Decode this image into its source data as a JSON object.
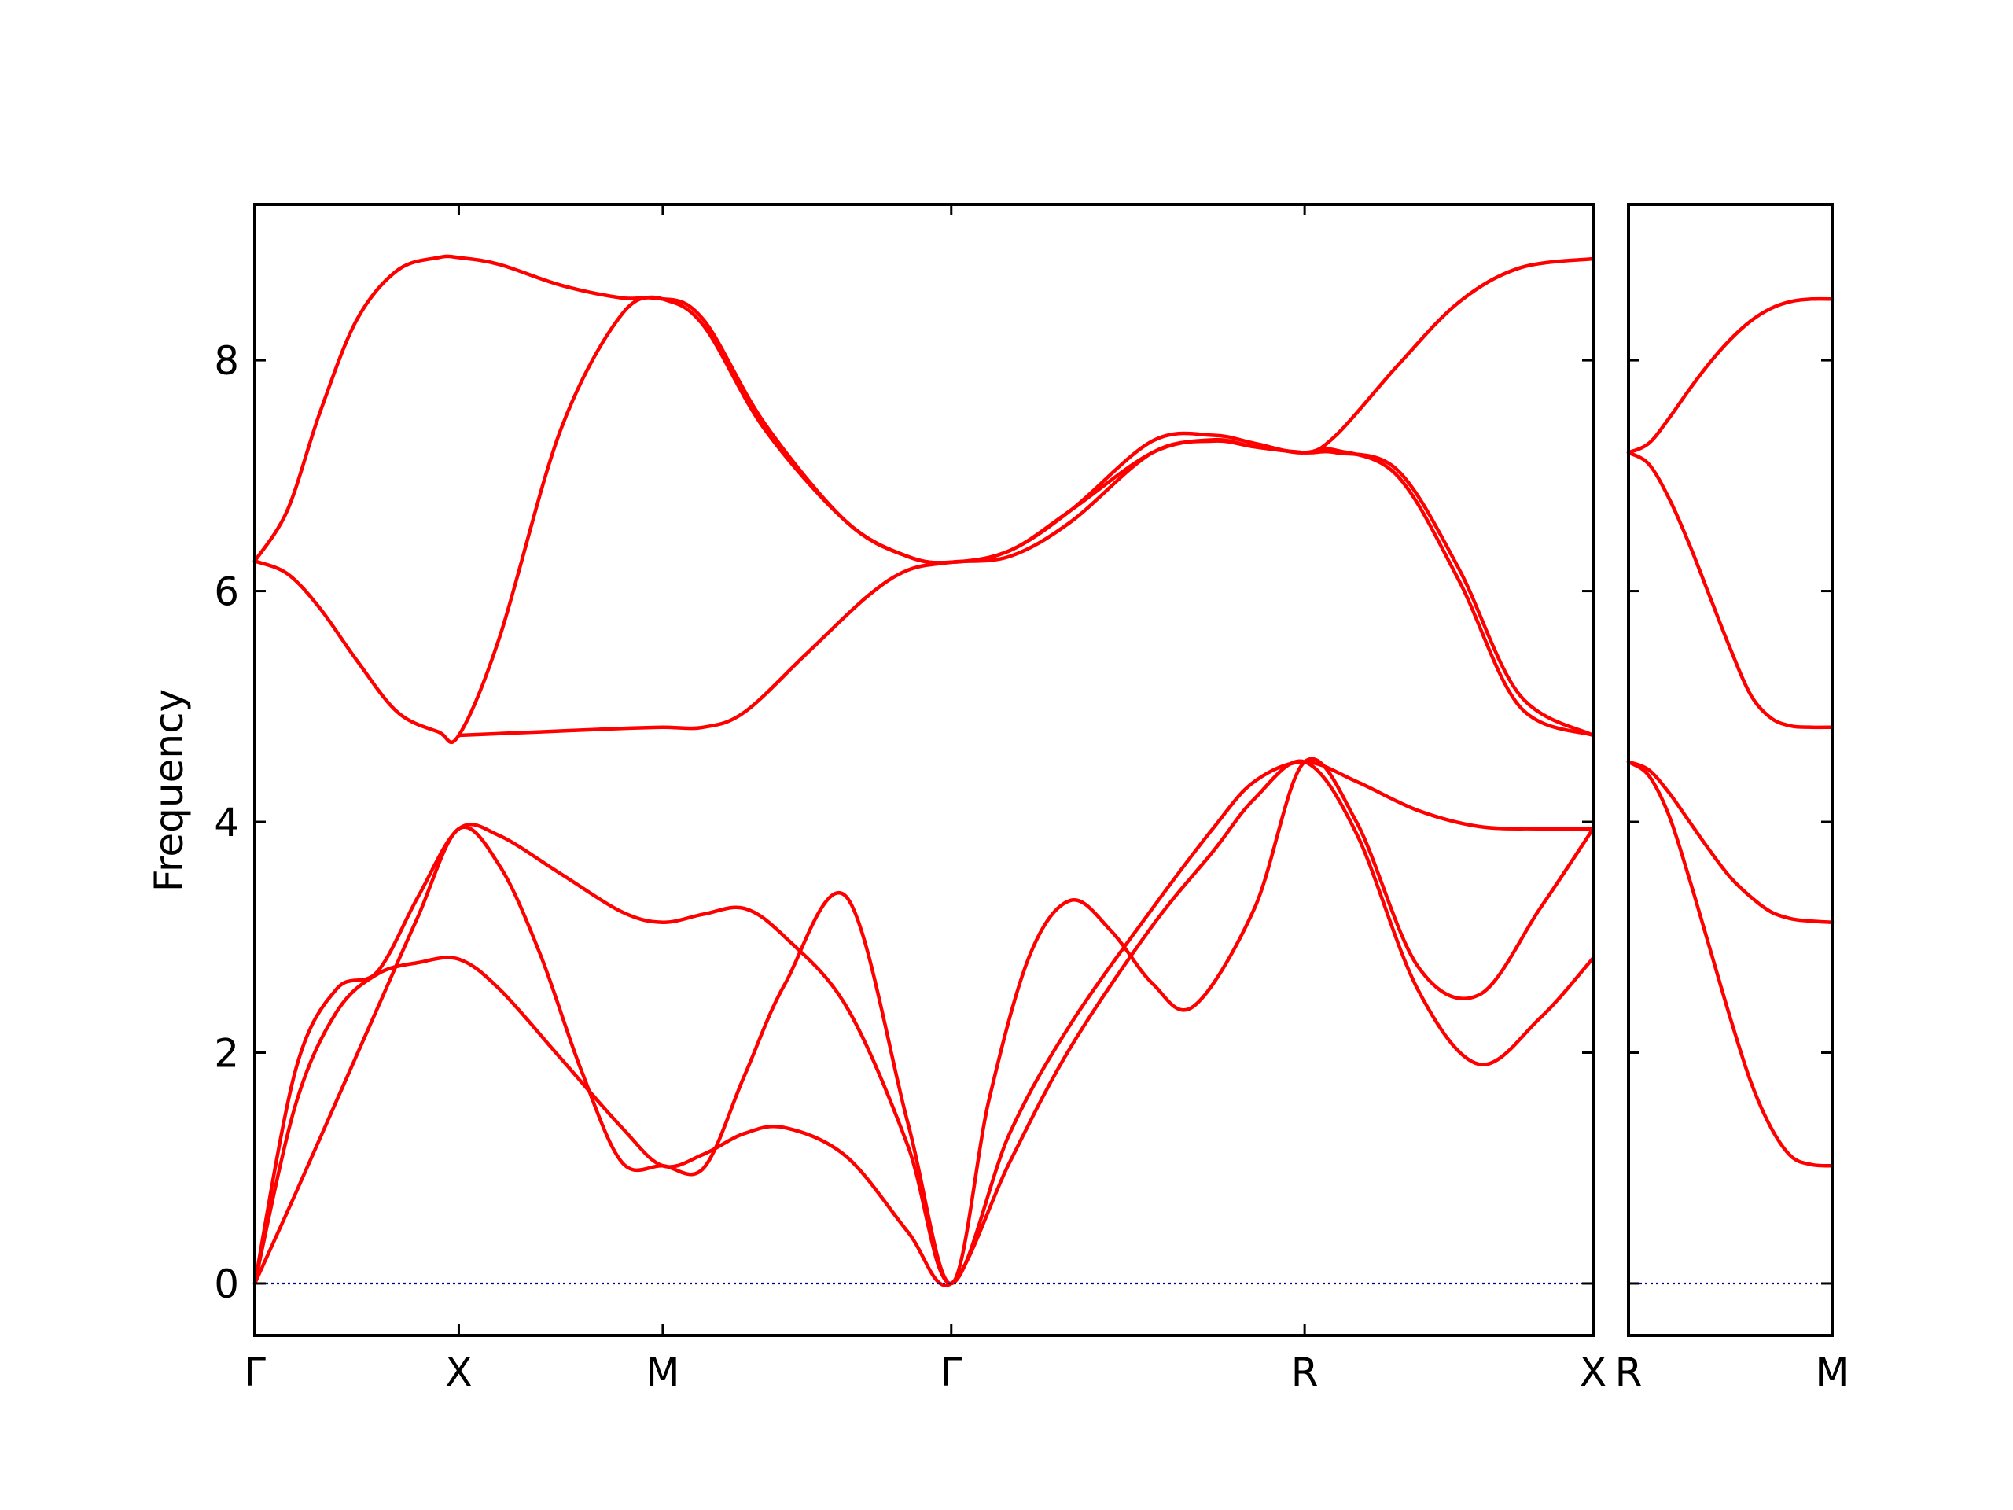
{
  "chart_data": {
    "type": "line",
    "ylabel": "Frequency",
    "ylim": [
      -0.45,
      9.35
    ],
    "yticks": [
      0,
      2,
      4,
      6,
      8
    ],
    "line_color": "#ff0000",
    "zero_line_color": "#00008b",
    "panels": [
      {
        "name": "left-panel",
        "xticks": [
          {
            "pos": 0.0,
            "label": "Γ"
          },
          {
            "pos": 0.5,
            "label": "X"
          },
          {
            "pos": 1.0,
            "label": "M"
          },
          {
            "pos": 1.707,
            "label": "Γ"
          },
          {
            "pos": 2.573,
            "label": "R"
          },
          {
            "pos": 3.28,
            "label": "X"
          }
        ],
        "xlim": [
          0,
          3.28
        ],
        "series": [
          {
            "x": [
              0,
              0.08,
              0.16,
              0.25,
              0.35,
              0.45,
              0.5,
              0.6,
              0.75,
              0.9,
              1.0,
              1.1,
              1.25,
              1.45,
              1.6,
              1.707,
              1.85,
              2.0,
              2.2,
              2.35,
              2.45,
              2.573,
              2.65,
              2.8,
              2.95,
              3.1,
              3.28
            ],
            "y": [
              6.26,
              6.7,
              7.55,
              8.35,
              8.78,
              8.89,
              8.89,
              8.83,
              8.65,
              8.54,
              8.53,
              8.3,
              7.4,
              6.6,
              6.3,
              6.25,
              6.35,
              6.7,
              7.3,
              7.35,
              7.28,
              7.2,
              7.35,
              7.95,
              8.5,
              8.8,
              8.88
            ]
          },
          {
            "x": [
              0,
              0.08,
              0.16,
              0.25,
              0.35,
              0.45,
              0.5,
              0.6,
              0.75,
              0.9,
              1.0,
              1.1,
              1.25,
              1.45,
              1.6,
              1.707,
              1.85,
              2.0,
              2.2,
              2.35,
              2.45,
              2.573,
              2.65,
              2.8,
              2.95,
              3.1,
              3.28
            ],
            "y": [
              6.26,
              6.15,
              5.85,
              5.4,
              4.95,
              4.78,
              4.75,
              5.6,
              7.4,
              8.4,
              8.53,
              8.35,
              7.45,
              6.6,
              6.3,
              6.25,
              6.35,
              6.7,
              7.2,
              7.31,
              7.25,
              7.2,
              7.2,
              7.05,
              6.2,
              5.1,
              4.75
            ]
          },
          {
            "x": [
              0.5,
              0.7,
              0.9,
              1.0,
              1.1,
              1.2,
              1.35,
              1.5,
              1.6,
              1.707,
              1.85,
              2.0,
              2.2,
              2.35,
              2.45,
              2.573,
              2.65,
              2.8,
              2.95,
              3.1,
              3.28
            ],
            "y": [
              4.75,
              4.78,
              4.81,
              4.82,
              4.82,
              4.95,
              5.45,
              5.95,
              6.18,
              6.25,
              6.3,
              6.6,
              7.2,
              7.3,
              7.25,
              7.2,
              7.22,
              7.0,
              6.1,
              5.0,
              4.75
            ]
          },
          {
            "x": [
              0,
              0.1,
              0.2,
              0.3,
              0.4,
              0.5,
              0.6,
              0.75,
              0.9,
              1.0,
              1.1,
              1.2,
              1.3,
              1.45,
              1.6,
              1.707,
              1.85,
              2.0,
              2.2,
              2.35,
              2.45,
              2.573,
              2.7,
              2.85,
              3.0,
              3.15,
              3.28
            ],
            "y": [
              0.0,
              1.55,
              2.35,
              2.68,
              2.78,
              2.81,
              2.55,
              1.95,
              1.35,
              1.02,
              1.12,
              1.3,
              1.35,
              1.1,
              0.45,
              0.0,
              1.05,
              2.05,
              3.1,
              3.75,
              4.2,
              4.52,
              3.9,
              2.55,
              1.9,
              2.3,
              2.82
            ]
          },
          {
            "x": [
              0,
              0.1,
              0.2,
              0.3,
              0.4,
              0.5,
              0.6,
              0.7,
              0.8,
              0.9,
              1.0,
              1.1,
              1.2,
              1.3,
              1.45,
              1.6,
              1.707,
              1.8,
              1.9,
              2.0,
              2.1,
              2.2,
              2.3,
              2.45,
              2.573,
              2.7,
              2.85,
              3.0,
              3.15,
              3.28
            ],
            "y": [
              0.0,
              0.78,
              1.58,
              2.38,
              3.18,
              3.94,
              3.62,
              2.85,
              1.85,
              1.05,
              1.02,
              1.0,
              1.8,
              2.6,
              3.35,
              1.4,
              0.0,
              1.6,
              2.85,
              3.32,
              3.05,
              2.6,
              2.4,
              3.25,
              4.52,
              4.0,
              2.75,
              2.5,
              3.25,
              3.94
            ]
          },
          {
            "x": [
              0,
              0.1,
              0.2,
              0.3,
              0.4,
              0.5,
              0.6,
              0.75,
              0.9,
              1.0,
              1.1,
              1.2,
              1.3,
              1.45,
              1.6,
              1.707,
              1.85,
              2.0,
              2.2,
              2.35,
              2.45,
              2.573,
              2.7,
              2.85,
              3.0,
              3.15,
              3.28
            ],
            "y": [
              0.0,
              1.85,
              2.55,
              2.7,
              3.35,
              3.94,
              3.88,
              3.55,
              3.22,
              3.13,
              3.2,
              3.25,
              3.0,
              2.4,
              1.2,
              0.0,
              1.3,
              2.25,
              3.25,
              3.95,
              4.35,
              4.52,
              4.35,
              4.1,
              3.96,
              3.94,
              3.94
            ]
          }
        ]
      },
      {
        "name": "right-panel",
        "xticks": [
          {
            "pos": 0.0,
            "label": "R"
          },
          {
            "pos": 0.5,
            "label": "M"
          }
        ],
        "xlim": [
          0,
          0.5
        ],
        "series": [
          {
            "x": [
              0,
              0.05,
              0.1,
              0.15,
              0.2,
              0.25,
              0.3,
              0.35,
              0.4,
              0.45,
              0.5
            ],
            "y": [
              7.2,
              7.28,
              7.5,
              7.75,
              7.98,
              8.18,
              8.34,
              8.45,
              8.51,
              8.53,
              8.53
            ]
          },
          {
            "x": [
              0,
              0.05,
              0.1,
              0.15,
              0.2,
              0.25,
              0.3,
              0.35,
              0.4,
              0.45,
              0.5
            ],
            "y": [
              7.2,
              7.1,
              6.8,
              6.4,
              5.95,
              5.5,
              5.1,
              4.9,
              4.83,
              4.82,
              4.82
            ]
          },
          {
            "x": [
              0,
              0.05,
              0.1,
              0.15,
              0.2,
              0.25,
              0.3,
              0.35,
              0.4,
              0.45,
              0.5
            ],
            "y": [
              4.52,
              4.45,
              4.25,
              4.0,
              3.75,
              3.52,
              3.35,
              3.22,
              3.16,
              3.14,
              3.13
            ]
          },
          {
            "x": [
              0,
              0.05,
              0.1,
              0.15,
              0.2,
              0.25,
              0.3,
              0.35,
              0.4,
              0.45,
              0.5
            ],
            "y": [
              4.52,
              4.4,
              4.05,
              3.5,
              2.9,
              2.3,
              1.75,
              1.35,
              1.1,
              1.03,
              1.02
            ]
          }
        ]
      }
    ]
  }
}
